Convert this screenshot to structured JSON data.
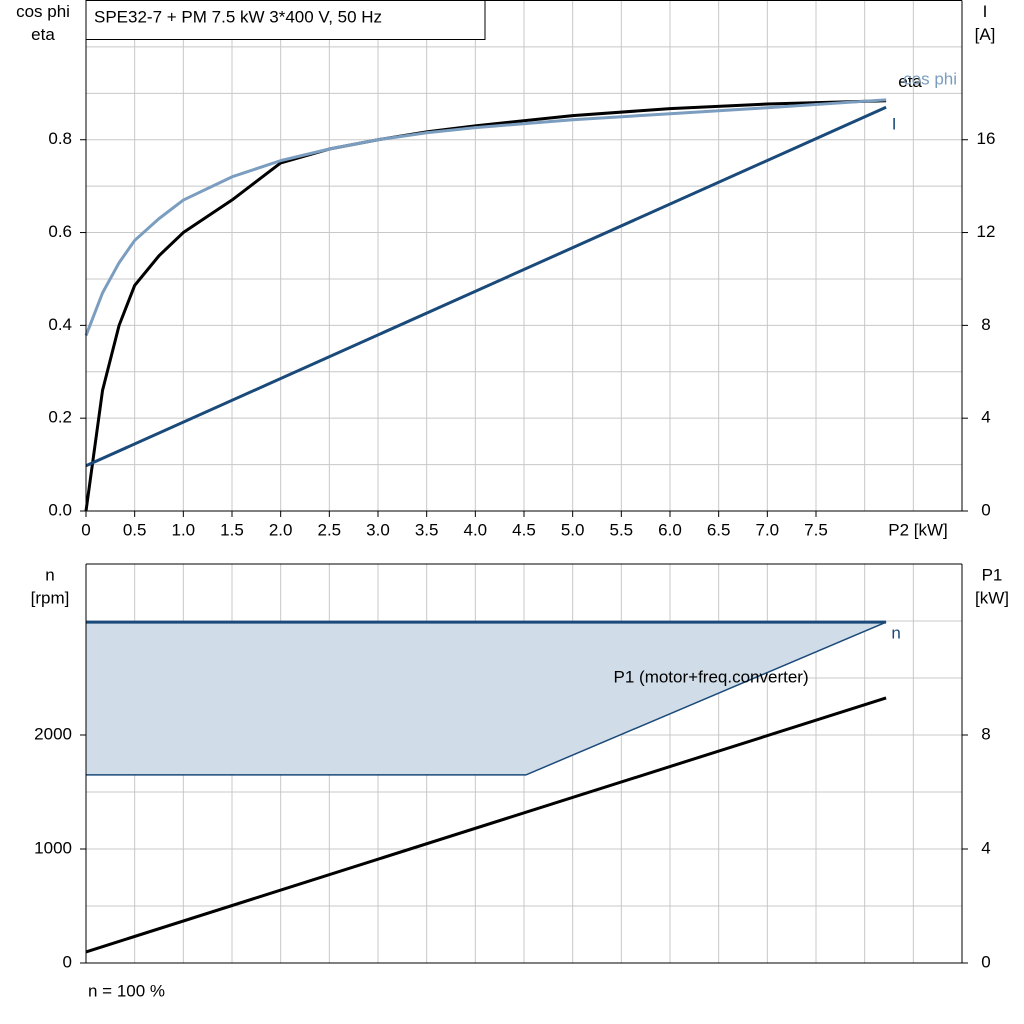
{
  "chart_data": [
    {
      "type": "line",
      "title": "SPE32-7 + PM   7.5 kW   3*400 V, 50 Hz",
      "y_label": [
        "cos phi",
        "eta"
      ],
      "y2_label": [
        "I",
        "[A]"
      ],
      "x_label": "P2 [kW]",
      "xlim": [
        0,
        9
      ],
      "xticks": [
        {
          "value": 0,
          "label": "0"
        },
        0.5,
        {
          "value": 1,
          "label": "1.0"
        },
        1.5,
        {
          "value": 2,
          "label": "2.0"
        },
        2.5,
        {
          "value": 3,
          "label": "3.0"
        },
        3.5,
        {
          "value": 4,
          "label": "4.0"
        },
        4.5,
        {
          "value": 5,
          "label": "5.0"
        },
        5.5,
        {
          "value": 6,
          "label": "6.0"
        },
        6.5,
        {
          "value": 7,
          "label": "7.0"
        },
        7.5
      ],
      "xgrid": [
        0.5,
        1,
        1.5,
        2,
        2.5,
        3,
        3.5,
        4,
        4.5,
        5,
        5.5,
        6,
        6.5,
        7,
        7.5,
        8,
        8.5
      ],
      "ylim": [
        0,
        1.1
      ],
      "yticks": [
        {
          "value": 0,
          "label": "0.0"
        },
        0.2,
        0.4,
        0.6,
        0.8
      ],
      "ygrid": [
        0.1,
        0.2,
        0.3,
        0.4,
        0.5,
        0.6,
        0.7,
        0.8,
        0.9,
        1.0
      ],
      "y2lim": [
        0,
        22
      ],
      "y2ticks": [
        0,
        4,
        8,
        12,
        16
      ],
      "grid": true,
      "series": [
        {
          "name": "eta",
          "color": "#000000",
          "x": [
            0,
            0.17,
            0.34,
            0.5,
            0.75,
            1,
            1.5,
            2,
            2.5,
            3,
            3.5,
            4,
            5,
            6,
            7,
            8.22
          ],
          "values": [
            0,
            0.26,
            0.4,
            0.486,
            0.55,
            0.6,
            0.67,
            0.75,
            0.78,
            0.8,
            0.817,
            0.83,
            0.852,
            0.867,
            0.877,
            0.884
          ]
        },
        {
          "name": "cos phi",
          "color": "#7b9dbf",
          "x": [
            0,
            0.17,
            0.34,
            0.5,
            0.75,
            1,
            1.5,
            2,
            2.5,
            3,
            3.5,
            4,
            5,
            6,
            7,
            8.22
          ],
          "values": [
            0.378,
            0.47,
            0.535,
            0.583,
            0.63,
            0.67,
            0.72,
            0.755,
            0.78,
            0.8,
            0.815,
            0.826,
            0.843,
            0.856,
            0.869,
            0.886
          ]
        },
        {
          "name": "I",
          "color": "#1a4a7a",
          "axis": "y2",
          "x": [
            0,
            8.22
          ],
          "values": [
            1.95,
            17.4
          ]
        }
      ]
    },
    {
      "type": "line",
      "y_label": [
        "n",
        "[rpm]"
      ],
      "y2_label": [
        "P1",
        "[kW]"
      ],
      "footnote": "n = 100 %",
      "xlim": [
        0,
        9
      ],
      "xgrid": [
        0.5,
        1,
        1.5,
        2,
        2.5,
        3,
        3.5,
        4,
        4.5,
        5,
        5.5,
        6,
        6.5,
        7,
        7.5,
        8,
        8.5
      ],
      "ylim": [
        0,
        3500
      ],
      "yticks": [
        0,
        1000,
        2000
      ],
      "ygrid": [
        500,
        1000,
        1500,
        2000,
        2500,
        3000
      ],
      "y2lim": [
        0,
        14
      ],
      "y2ticks": [
        0,
        4,
        8
      ],
      "grid": true,
      "series": [
        {
          "name": "n",
          "color": "#1a4a7a",
          "fill": "#d0dce8",
          "x": [
            0,
            4.52,
            8.22
          ],
          "values": [
            2990,
            2990,
            2990
          ],
          "lower": [
            1650,
            1650,
            2990
          ]
        },
        {
          "name": "P1 (motor+freq.converter)",
          "color": "#000000",
          "axis": "y2",
          "x": [
            0,
            8.22
          ],
          "values": [
            0.39,
            9.3
          ]
        }
      ]
    }
  ]
}
